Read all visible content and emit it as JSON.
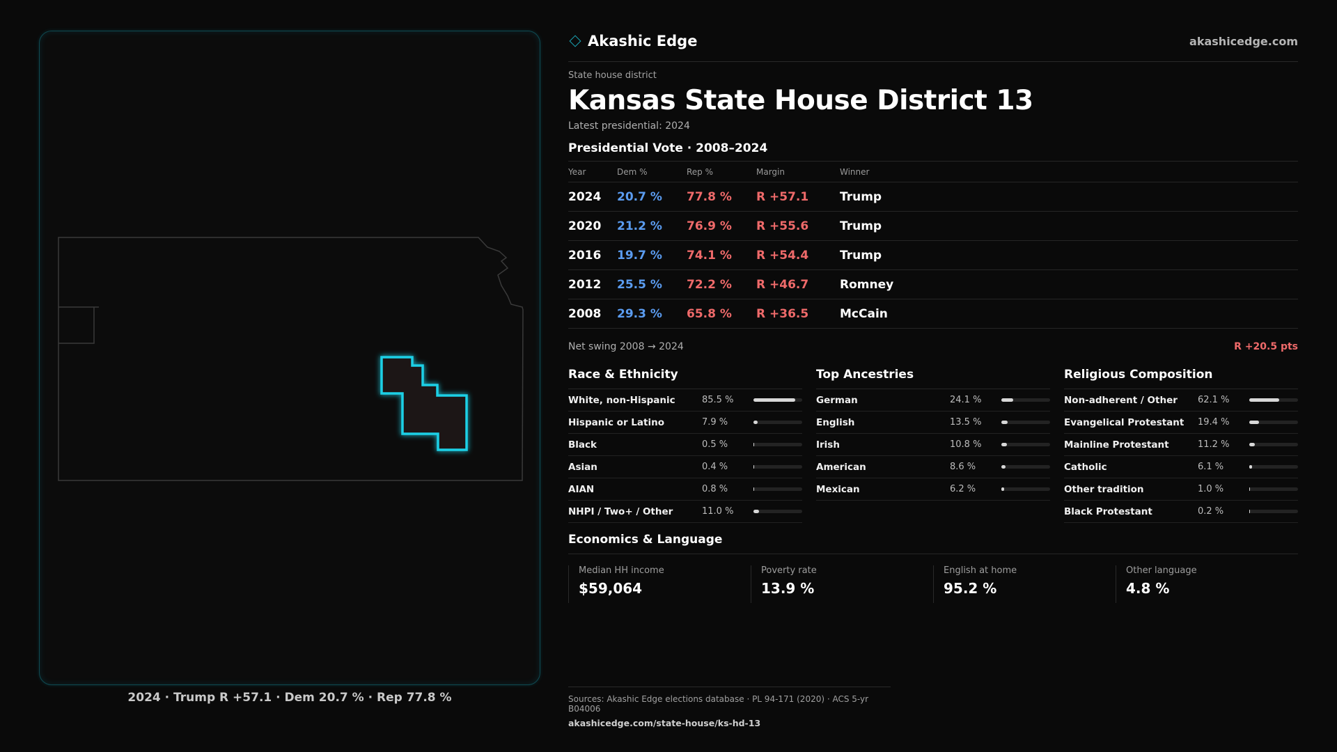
{
  "brand": {
    "name": "Akashic Edge",
    "url": "akashicedge.com"
  },
  "kicker": "State house district",
  "title": "Kansas State House District 13",
  "latest": "Latest presidential: 2024",
  "vote": {
    "title": "Presidential Vote · 2008–2024",
    "headers": [
      "Year",
      "Dem %",
      "Rep %",
      "Margin",
      "Winner"
    ],
    "rows": [
      [
        "2024",
        "20.7 %",
        "77.8 %",
        "R +57.1",
        "Trump"
      ],
      [
        "2020",
        "21.2 %",
        "76.9 %",
        "R +55.6",
        "Trump"
      ],
      [
        "2016",
        "19.7 %",
        "74.1 %",
        "R +54.4",
        "Trump"
      ],
      [
        "2012",
        "25.5 %",
        "72.2 %",
        "R +46.7",
        "Romney"
      ],
      [
        "2008",
        "29.3 %",
        "65.8 %",
        "R +36.5",
        "McCain"
      ]
    ]
  },
  "swing": {
    "label": "Net swing 2008 → 2024",
    "value": "R +20.5 pts"
  },
  "race": {
    "title": "Race & Ethnicity",
    "rows": [
      {
        "label": "White, non-Hispanic",
        "value": "85.5 %",
        "fraction": 0.855
      },
      {
        "label": "Hispanic or Latino",
        "value": "7.9 %",
        "fraction": 0.079
      },
      {
        "label": "Black",
        "value": "0.5 %",
        "fraction": 0.005
      },
      {
        "label": "Asian",
        "value": "0.4 %",
        "fraction": 0.004
      },
      {
        "label": "AIAN",
        "value": "0.8 %",
        "fraction": 0.008
      },
      {
        "label": "NHPI / Two+ / Other",
        "value": "11.0 %",
        "fraction": 0.11
      }
    ]
  },
  "ancestry": {
    "title": "Top Ancestries",
    "rows": [
      {
        "label": "German",
        "value": "24.1 %",
        "fraction": 0.241
      },
      {
        "label": "English",
        "value": "13.5 %",
        "fraction": 0.135
      },
      {
        "label": "Irish",
        "value": "10.8 %",
        "fraction": 0.108
      },
      {
        "label": "American",
        "value": "8.6 %",
        "fraction": 0.086
      },
      {
        "label": "Mexican",
        "value": "6.2 %",
        "fraction": 0.062
      }
    ]
  },
  "religion": {
    "title": "Religious Composition",
    "rows": [
      {
        "label": "Non-adherent / Other",
        "value": "62.1 %",
        "fraction": 0.621
      },
      {
        "label": "Evangelical Protestant",
        "value": "19.4 %",
        "fraction": 0.194
      },
      {
        "label": "Mainline Protestant",
        "value": "11.2 %",
        "fraction": 0.112
      },
      {
        "label": "Catholic",
        "value": "6.1 %",
        "fraction": 0.061
      },
      {
        "label": "Other tradition",
        "value": "1.0 %",
        "fraction": 0.01
      },
      {
        "label": "Black Protestant",
        "value": "0.2 %",
        "fraction": 0.002
      }
    ]
  },
  "economics": {
    "title": "Economics & Language",
    "items": [
      {
        "label": "Median HH income",
        "value": "$59,064"
      },
      {
        "label": "Poverty rate",
        "value": "13.9 %"
      },
      {
        "label": "English at home",
        "value": "95.2 %"
      },
      {
        "label": "Other language",
        "value": "4.8 %"
      }
    ]
  },
  "map_caption": "2024 · Trump R +57.1 · Dem 20.7 % · Rep 77.8 %",
  "footer": {
    "sources": "Sources: Akashic Edge elections database · PL 94-171 (2020) · ACS 5-yr B04006",
    "url": "akashicedge.com/state-house/ks-hd-13"
  },
  "colors": {
    "dem": "#5b9cf0",
    "rep": "#ef6a6a",
    "accent": "#1ad0e6"
  }
}
